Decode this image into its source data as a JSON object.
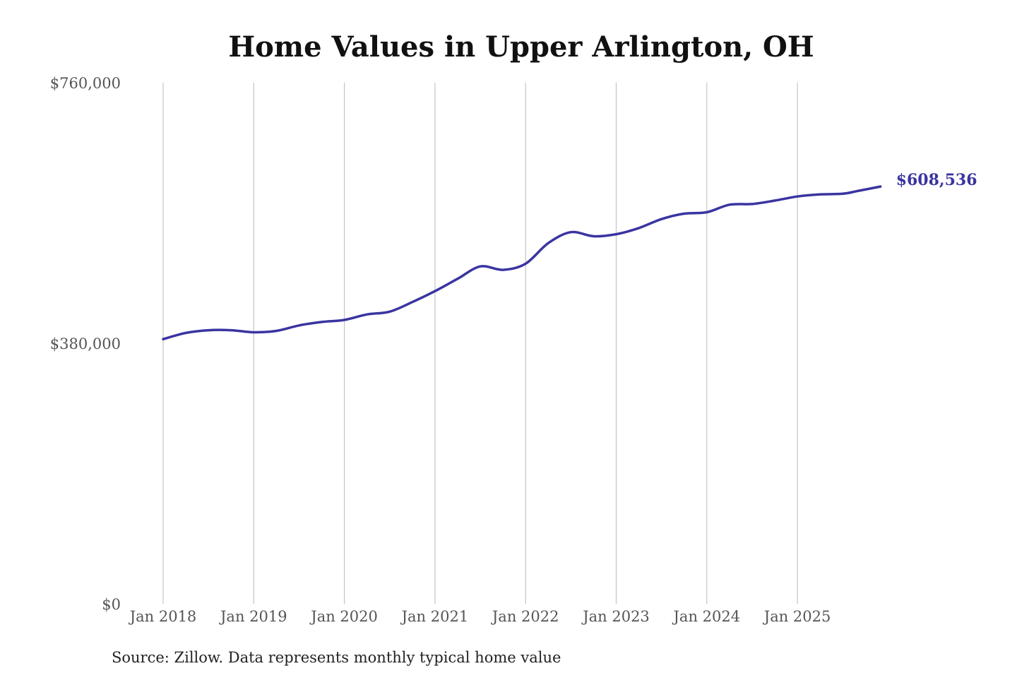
{
  "chart_data": {
    "type": "line",
    "title": "Home Values in Upper Arlington, OH",
    "xlabel": "",
    "ylabel": "",
    "ylim": [
      0,
      760000
    ],
    "y_ticks": [
      {
        "value": 0,
        "label": "$0"
      },
      {
        "value": 380000,
        "label": "$380,000"
      },
      {
        "value": 760000,
        "label": "$760,000"
      }
    ],
    "x_ticks": [
      {
        "value": "2018-01",
        "label": "Jan 2018"
      },
      {
        "value": "2019-01",
        "label": "Jan 2019"
      },
      {
        "value": "2020-01",
        "label": "Jan 2020"
      },
      {
        "value": "2021-01",
        "label": "Jan 2021"
      },
      {
        "value": "2022-01",
        "label": "Jan 2022"
      },
      {
        "value": "2023-01",
        "label": "Jan 2023"
      },
      {
        "value": "2024-01",
        "label": "Jan 2024"
      },
      {
        "value": "2025-01",
        "label": "Jan 2025"
      }
    ],
    "x_range": [
      "2018-01",
      "2025-12"
    ],
    "grid": "vertical",
    "line_color": "#3a34a0",
    "end_label": "$608,536",
    "source": "Source: Zillow. Data represents monthly typical home value",
    "series": [
      {
        "name": "",
        "points": [
          {
            "date": "2018-01",
            "value": 386000
          },
          {
            "date": "2018-04",
            "value": 395000
          },
          {
            "date": "2018-07",
            "value": 399000
          },
          {
            "date": "2018-10",
            "value": 399000
          },
          {
            "date": "2019-01",
            "value": 396000
          },
          {
            "date": "2019-04",
            "value": 398000
          },
          {
            "date": "2019-07",
            "value": 406000
          },
          {
            "date": "2019-10",
            "value": 411000
          },
          {
            "date": "2020-01",
            "value": 414000
          },
          {
            "date": "2020-04",
            "value": 422000
          },
          {
            "date": "2020-07",
            "value": 426000
          },
          {
            "date": "2020-10",
            "value": 440000
          },
          {
            "date": "2021-01",
            "value": 456000
          },
          {
            "date": "2021-04",
            "value": 474000
          },
          {
            "date": "2021-07",
            "value": 492000
          },
          {
            "date": "2021-10",
            "value": 487000
          },
          {
            "date": "2022-01",
            "value": 496000
          },
          {
            "date": "2022-04",
            "value": 526000
          },
          {
            "date": "2022-07",
            "value": 542000
          },
          {
            "date": "2022-10",
            "value": 536000
          },
          {
            "date": "2023-01",
            "value": 539000
          },
          {
            "date": "2023-04",
            "value": 548000
          },
          {
            "date": "2023-07",
            "value": 561000
          },
          {
            "date": "2023-10",
            "value": 569000
          },
          {
            "date": "2024-01",
            "value": 571000
          },
          {
            "date": "2024-04",
            "value": 582000
          },
          {
            "date": "2024-07",
            "value": 583000
          },
          {
            "date": "2024-10",
            "value": 588000
          },
          {
            "date": "2025-01",
            "value": 594000
          },
          {
            "date": "2025-04",
            "value": 597000
          },
          {
            "date": "2025-07",
            "value": 598000
          },
          {
            "date": "2025-09",
            "value": 602000
          },
          {
            "date": "2025-12",
            "value": 608536
          }
        ]
      }
    ]
  }
}
